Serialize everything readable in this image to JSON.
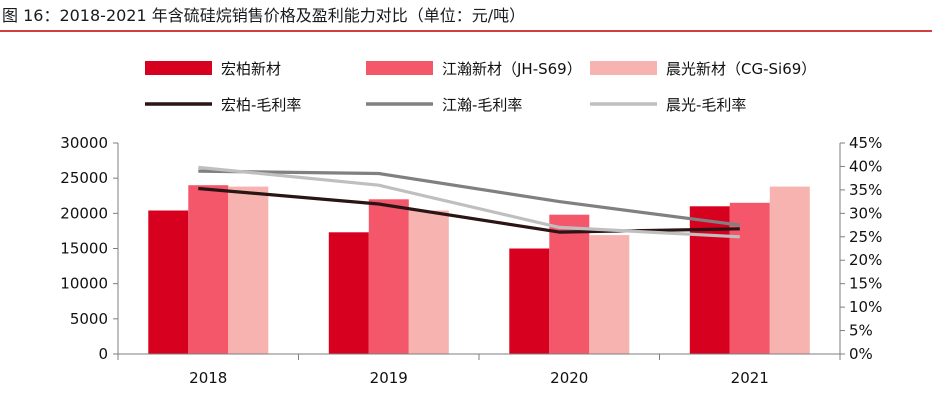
{
  "figure_title": "图 16：2018-2021 年含硫硅烷销售价格及盈利能力对比（单位：元/吨）",
  "chart_data": {
    "type": "bar",
    "categories": [
      "2018",
      "2019",
      "2020",
      "2021"
    ],
    "series": [
      {
        "name": "宏柏新材",
        "kind": "bar",
        "axis": "left",
        "color": "#D7001F",
        "values": [
          20400,
          17300,
          15000,
          21000
        ]
      },
      {
        "name": "江瀚新材（JH-S69）",
        "kind": "bar",
        "axis": "left",
        "color": "#F4566A",
        "values": [
          24000,
          22000,
          19800,
          21500
        ]
      },
      {
        "name": "晨光新材（CG-Si69）",
        "kind": "bar",
        "axis": "left",
        "color": "#F7B3B0",
        "values": [
          23800,
          20400,
          16900,
          23800
        ]
      },
      {
        "name": "宏柏-毛利率",
        "kind": "line",
        "axis": "right",
        "color": "#2A1414",
        "values": [
          35.3,
          32.0,
          26.0,
          26.7
        ]
      },
      {
        "name": "江瀚-毛利率",
        "kind": "line",
        "axis": "right",
        "color": "#808080",
        "values": [
          39.0,
          38.5,
          32.5,
          27.5
        ]
      },
      {
        "name": "晨光-毛利率",
        "kind": "line",
        "axis": "right",
        "color": "#BFBFBF",
        "values": [
          39.8,
          36.0,
          27.0,
          25.0
        ]
      }
    ],
    "yleft": {
      "min": 0,
      "max": 30000,
      "ticks": [
        "0",
        "5000",
        "10000",
        "15000",
        "20000",
        "25000",
        "30000"
      ]
    },
    "yright": {
      "min": 0,
      "max": 45,
      "ticks": [
        "0%",
        "5%",
        "10%",
        "15%",
        "20%",
        "25%",
        "30%",
        "35%",
        "40%",
        "45%"
      ]
    },
    "grid": false,
    "legend_position": "top"
  }
}
